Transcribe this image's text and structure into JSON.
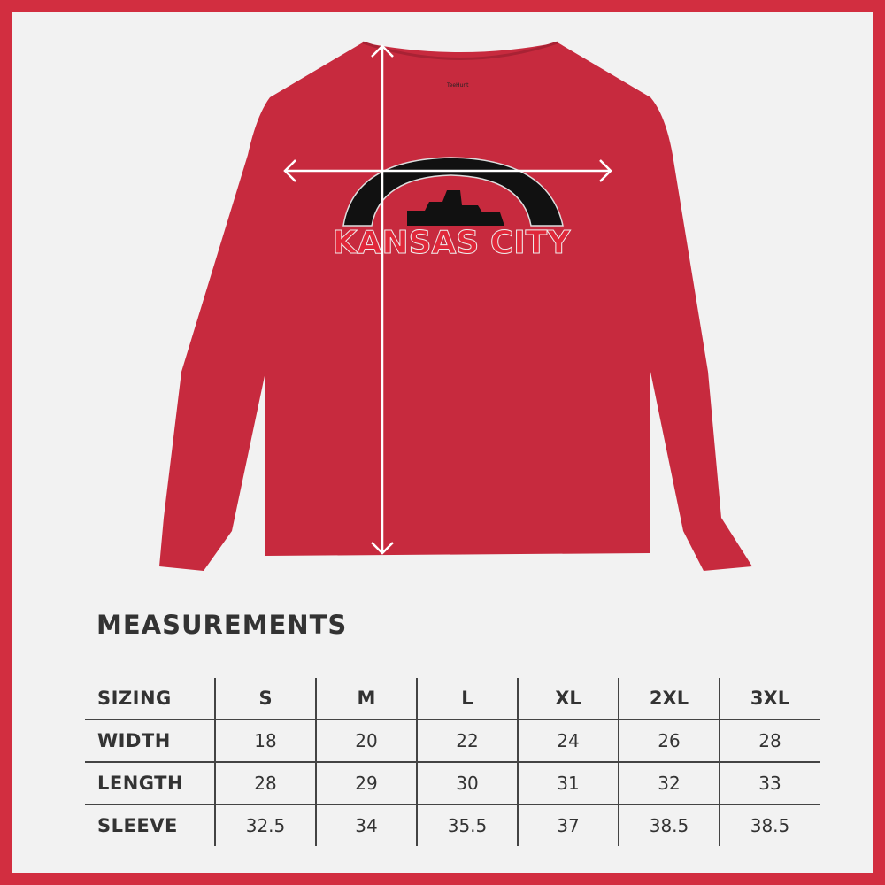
{
  "graphic": {
    "text": "KANSAS CITY",
    "label_brand": "TeeHunt"
  },
  "colors": {
    "border": "#d22e40",
    "shirt": "#c72a3e",
    "text": "#333333"
  },
  "measurements": {
    "title": "MEASUREMENTS",
    "columns": [
      "SIZING",
      "S",
      "M",
      "L",
      "XL",
      "2XL",
      "3XL"
    ],
    "rows": [
      {
        "label": "WIDTH",
        "values": [
          "18",
          "20",
          "22",
          "24",
          "26",
          "28"
        ]
      },
      {
        "label": "LENGTH",
        "values": [
          "28",
          "29",
          "30",
          "31",
          "32",
          "33"
        ]
      },
      {
        "label": "SLEEVE",
        "values": [
          "32.5",
          "34",
          "35.5",
          "37",
          "38.5",
          "38.5"
        ]
      }
    ]
  }
}
